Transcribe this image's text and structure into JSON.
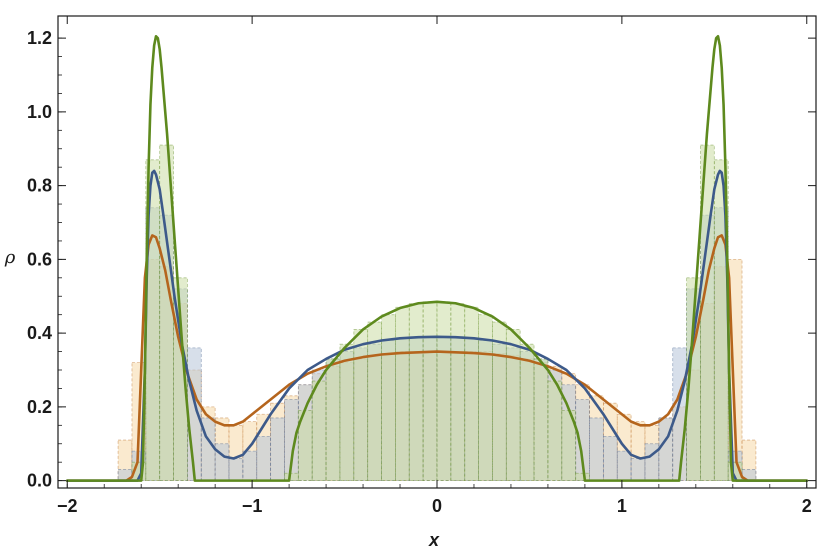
{
  "chart_data": {
    "type": "line",
    "xlabel": "x",
    "ylabel": "ρ",
    "xlim": [
      -2.05,
      2.05
    ],
    "ylim": [
      -0.02,
      1.26
    ],
    "x_ticks": [
      {
        "value": -2,
        "label": "−2"
      },
      {
        "value": -1,
        "label": "−1"
      },
      {
        "value": 0,
        "label": "0"
      },
      {
        "value": 1,
        "label": "1"
      },
      {
        "value": 2,
        "label": "2"
      }
    ],
    "y_ticks": [
      {
        "value": 0.0,
        "label": "0.0"
      },
      {
        "value": 0.2,
        "label": "0.2"
      },
      {
        "value": 0.4,
        "label": "0.4"
      },
      {
        "value": 0.6,
        "label": "0.6"
      },
      {
        "value": 0.8,
        "label": "0.8"
      },
      {
        "value": 1.0,
        "label": "1.0"
      },
      {
        "value": 1.2,
        "label": "1.2"
      }
    ],
    "grid": false,
    "colors": {
      "orange": "#b5651d",
      "blue": "#3d5a8a",
      "green": "#5e8a1e",
      "orange_fill": "#f6d9a8",
      "blue_fill": "#b7c4d8",
      "green_fill": "#cbdca4",
      "frame": "#1a1a1a"
    },
    "histograms": [
      {
        "key": "orange",
        "bin_width": 0.075,
        "bins": [
          [
            -1.725,
            0.11
          ],
          [
            -1.65,
            0.32
          ],
          [
            -1.575,
            0.6
          ],
          [
            -1.5,
            0.58
          ],
          [
            -1.425,
            0.48
          ],
          [
            -1.35,
            0.3
          ],
          [
            -1.275,
            0.2
          ],
          [
            -1.2,
            0.17
          ],
          [
            -1.125,
            0.15
          ],
          [
            -1.05,
            0.16
          ],
          [
            -0.975,
            0.18
          ],
          [
            -0.9,
            0.21
          ],
          [
            -0.825,
            0.23
          ],
          [
            -0.75,
            0.26
          ],
          [
            -0.675,
            0.29
          ],
          [
            -0.6,
            0.31
          ],
          [
            -0.525,
            0.32
          ],
          [
            -0.45,
            0.33
          ],
          [
            -0.375,
            0.34
          ],
          [
            -0.3,
            0.345
          ],
          [
            -0.225,
            0.35
          ],
          [
            -0.15,
            0.35
          ],
          [
            -0.075,
            0.35
          ],
          [
            0.0,
            0.35
          ],
          [
            0.075,
            0.35
          ],
          [
            0.15,
            0.35
          ],
          [
            0.225,
            0.35
          ],
          [
            0.3,
            0.345
          ],
          [
            0.375,
            0.34
          ],
          [
            0.45,
            0.33
          ],
          [
            0.525,
            0.32
          ],
          [
            0.6,
            0.31
          ],
          [
            0.675,
            0.29
          ],
          [
            0.75,
            0.26
          ],
          [
            0.825,
            0.23
          ],
          [
            0.9,
            0.21
          ],
          [
            0.975,
            0.18
          ],
          [
            1.05,
            0.16
          ],
          [
            1.125,
            0.15
          ],
          [
            1.2,
            0.17
          ],
          [
            1.275,
            0.2
          ],
          [
            1.35,
            0.3
          ],
          [
            1.425,
            0.48
          ],
          [
            1.5,
            0.58
          ],
          [
            1.575,
            0.6
          ],
          [
            1.65,
            0.11
          ]
        ]
      },
      {
        "key": "blue",
        "bin_width": 0.075,
        "bins": [
          [
            -1.725,
            0.03
          ],
          [
            -1.65,
            0.08
          ],
          [
            -1.575,
            0.74
          ],
          [
            -1.5,
            0.72
          ],
          [
            -1.425,
            0.52
          ],
          [
            -1.35,
            0.36
          ],
          [
            -1.275,
            0.17
          ],
          [
            -1.2,
            0.1
          ],
          [
            -1.125,
            0.06
          ],
          [
            -1.05,
            0.08
          ],
          [
            -0.975,
            0.12
          ],
          [
            -0.9,
            0.17
          ],
          [
            -0.825,
            0.22
          ],
          [
            -0.75,
            0.26
          ],
          [
            -0.675,
            0.3
          ],
          [
            -0.6,
            0.33
          ],
          [
            -0.525,
            0.35
          ],
          [
            -0.45,
            0.36
          ],
          [
            -0.375,
            0.37
          ],
          [
            -0.3,
            0.38
          ],
          [
            -0.225,
            0.385
          ],
          [
            -0.15,
            0.39
          ],
          [
            -0.075,
            0.39
          ],
          [
            0.0,
            0.39
          ],
          [
            0.075,
            0.39
          ],
          [
            0.15,
            0.385
          ],
          [
            0.225,
            0.38
          ],
          [
            0.3,
            0.37
          ],
          [
            0.375,
            0.36
          ],
          [
            0.45,
            0.35
          ],
          [
            0.525,
            0.33
          ],
          [
            0.6,
            0.3
          ],
          [
            0.675,
            0.26
          ],
          [
            0.75,
            0.22
          ],
          [
            0.825,
            0.17
          ],
          [
            0.9,
            0.12
          ],
          [
            0.975,
            0.08
          ],
          [
            1.05,
            0.06
          ],
          [
            1.125,
            0.1
          ],
          [
            1.2,
            0.17
          ],
          [
            1.275,
            0.36
          ],
          [
            1.35,
            0.52
          ],
          [
            1.425,
            0.72
          ],
          [
            1.5,
            0.74
          ],
          [
            1.575,
            0.08
          ],
          [
            1.65,
            0.03
          ]
        ]
      },
      {
        "key": "green",
        "bin_width": 0.075,
        "bins": [
          [
            -1.65,
            0.05
          ],
          [
            -1.575,
            0.87
          ],
          [
            -1.5,
            0.91
          ],
          [
            -1.425,
            0.55
          ],
          [
            -0.825,
            0.02
          ],
          [
            -0.75,
            0.19
          ],
          [
            -0.675,
            0.27
          ],
          [
            -0.6,
            0.33
          ],
          [
            -0.525,
            0.37
          ],
          [
            -0.45,
            0.41
          ],
          [
            -0.375,
            0.43
          ],
          [
            -0.3,
            0.45
          ],
          [
            -0.225,
            0.47
          ],
          [
            -0.15,
            0.48
          ],
          [
            -0.075,
            0.485
          ],
          [
            0.0,
            0.485
          ],
          [
            0.075,
            0.48
          ],
          [
            0.15,
            0.47
          ],
          [
            0.225,
            0.45
          ],
          [
            0.3,
            0.43
          ],
          [
            0.375,
            0.41
          ],
          [
            0.45,
            0.37
          ],
          [
            0.525,
            0.33
          ],
          [
            0.6,
            0.27
          ],
          [
            0.675,
            0.19
          ],
          [
            0.75,
            0.02
          ],
          [
            1.35,
            0.55
          ],
          [
            1.425,
            0.91
          ],
          [
            1.5,
            0.87
          ],
          [
            1.575,
            0.05
          ]
        ]
      }
    ],
    "series": [
      {
        "key": "orange",
        "x": [
          -2.0,
          -1.7,
          -1.68,
          -1.65,
          -1.62,
          -1.6,
          -1.58,
          -1.56,
          -1.54,
          -1.52,
          -1.5,
          -1.47,
          -1.44,
          -1.4,
          -1.35,
          -1.3,
          -1.25,
          -1.2,
          -1.15,
          -1.1,
          -1.05,
          -1.0,
          -0.9,
          -0.8,
          -0.7,
          -0.6,
          -0.5,
          -0.4,
          -0.3,
          -0.2,
          -0.1,
          0.0,
          0.1,
          0.2,
          0.3,
          0.4,
          0.5,
          0.6,
          0.7,
          0.8,
          0.9,
          1.0,
          1.05,
          1.1,
          1.15,
          1.2,
          1.25,
          1.3,
          1.35,
          1.4,
          1.44,
          1.47,
          1.5,
          1.52,
          1.54,
          1.56,
          1.58,
          1.6,
          1.62,
          1.65,
          1.68,
          1.7,
          2.0
        ],
        "y": [
          0.0,
          0.0,
          0.0,
          0.01,
          0.05,
          0.3,
          0.55,
          0.64,
          0.665,
          0.66,
          0.63,
          0.57,
          0.49,
          0.39,
          0.29,
          0.22,
          0.18,
          0.16,
          0.15,
          0.15,
          0.16,
          0.18,
          0.22,
          0.26,
          0.29,
          0.31,
          0.325,
          0.335,
          0.342,
          0.346,
          0.348,
          0.35,
          0.348,
          0.346,
          0.342,
          0.335,
          0.325,
          0.31,
          0.29,
          0.26,
          0.22,
          0.18,
          0.16,
          0.15,
          0.15,
          0.16,
          0.18,
          0.22,
          0.29,
          0.39,
          0.49,
          0.57,
          0.63,
          0.66,
          0.665,
          0.64,
          0.55,
          0.3,
          0.05,
          0.01,
          0.0,
          0.0,
          0.0
        ]
      },
      {
        "key": "blue",
        "x": [
          -2.0,
          -1.62,
          -1.6,
          -1.58,
          -1.57,
          -1.56,
          -1.55,
          -1.54,
          -1.53,
          -1.52,
          -1.5,
          -1.48,
          -1.45,
          -1.42,
          -1.38,
          -1.34,
          -1.3,
          -1.25,
          -1.2,
          -1.15,
          -1.1,
          -1.05,
          -1.0,
          -0.95,
          -0.9,
          -0.8,
          -0.7,
          -0.6,
          -0.5,
          -0.4,
          -0.3,
          -0.2,
          -0.1,
          0.0,
          0.1,
          0.2,
          0.3,
          0.4,
          0.5,
          0.6,
          0.7,
          0.8,
          0.9,
          0.95,
          1.0,
          1.05,
          1.1,
          1.15,
          1.2,
          1.25,
          1.3,
          1.34,
          1.38,
          1.42,
          1.45,
          1.48,
          1.5,
          1.52,
          1.53,
          1.54,
          1.55,
          1.56,
          1.57,
          1.58,
          1.6,
          1.62,
          2.0
        ],
        "y": [
          0.0,
          0.0,
          0.02,
          0.3,
          0.55,
          0.72,
          0.8,
          0.835,
          0.84,
          0.83,
          0.79,
          0.72,
          0.61,
          0.5,
          0.37,
          0.27,
          0.19,
          0.12,
          0.085,
          0.065,
          0.06,
          0.07,
          0.1,
          0.14,
          0.18,
          0.25,
          0.3,
          0.33,
          0.355,
          0.37,
          0.38,
          0.386,
          0.389,
          0.39,
          0.389,
          0.386,
          0.38,
          0.37,
          0.355,
          0.33,
          0.3,
          0.25,
          0.18,
          0.14,
          0.1,
          0.07,
          0.06,
          0.065,
          0.085,
          0.12,
          0.19,
          0.27,
          0.37,
          0.5,
          0.61,
          0.72,
          0.79,
          0.83,
          0.84,
          0.835,
          0.8,
          0.72,
          0.55,
          0.3,
          0.02,
          0.0,
          0.0
        ]
      },
      {
        "key": "green",
        "x": [
          -2.0,
          -1.6,
          -1.59,
          -1.58,
          -1.57,
          -1.56,
          -1.55,
          -1.54,
          -1.53,
          -1.52,
          -1.51,
          -1.5,
          -1.49,
          -1.48,
          -1.46,
          -1.44,
          -1.42,
          -1.4,
          -1.38,
          -1.36,
          -1.34,
          -1.32,
          -1.31,
          -0.8,
          -0.79,
          -0.78,
          -0.76,
          -0.74,
          -0.7,
          -0.65,
          -0.6,
          -0.5,
          -0.4,
          -0.3,
          -0.2,
          -0.1,
          0.0,
          0.1,
          0.2,
          0.3,
          0.4,
          0.5,
          0.6,
          0.65,
          0.7,
          0.74,
          0.76,
          0.78,
          0.79,
          0.8,
          1.31,
          1.32,
          1.34,
          1.36,
          1.38,
          1.4,
          1.42,
          1.44,
          1.46,
          1.48,
          1.49,
          1.5,
          1.51,
          1.52,
          1.53,
          1.54,
          1.55,
          1.56,
          1.57,
          1.58,
          1.59,
          1.6,
          2.0
        ],
        "y": [
          0.0,
          0.0,
          0.05,
          0.3,
          0.6,
          0.85,
          1.02,
          1.12,
          1.18,
          1.205,
          1.2,
          1.17,
          1.12,
          1.06,
          0.94,
          0.8,
          0.66,
          0.52,
          0.38,
          0.25,
          0.14,
          0.05,
          0.0,
          0.0,
          0.04,
          0.08,
          0.13,
          0.16,
          0.21,
          0.26,
          0.3,
          0.36,
          0.41,
          0.445,
          0.468,
          0.481,
          0.485,
          0.481,
          0.468,
          0.445,
          0.41,
          0.36,
          0.3,
          0.26,
          0.21,
          0.16,
          0.13,
          0.08,
          0.04,
          0.0,
          0.0,
          0.05,
          0.14,
          0.25,
          0.38,
          0.52,
          0.66,
          0.8,
          0.94,
          1.06,
          1.12,
          1.17,
          1.2,
          1.205,
          1.18,
          1.12,
          1.02,
          0.85,
          0.6,
          0.3,
          0.05,
          0.0,
          0.0
        ]
      }
    ]
  }
}
